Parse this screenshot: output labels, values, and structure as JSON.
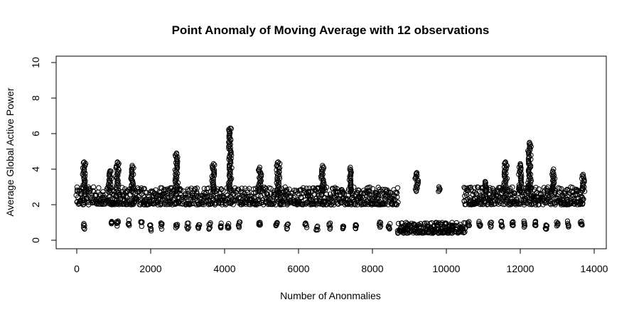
{
  "chart_data": {
    "type": "scatter",
    "title": "Point Anomaly of Moving Average with 12 observations",
    "xlabel": "Number of Anonmalies",
    "ylabel": "Average Global Active Power",
    "xlim": [
      0,
      14000
    ],
    "ylim": [
      0,
      10
    ],
    "x_ticks": [
      0,
      2000,
      4000,
      6000,
      8000,
      10000,
      12000,
      14000
    ],
    "y_ticks": [
      0,
      2,
      4,
      6,
      8,
      10
    ],
    "marker": "open-circle",
    "grid": false,
    "x_max_observed": 13700,
    "bands": [
      {
        "x": [
          0,
          8700
        ],
        "y_range": [
          2.0,
          3.0
        ],
        "note": "dense upper band"
      },
      {
        "x": [
          10500,
          13700
        ],
        "y_range": [
          2.0,
          3.0
        ],
        "note": "dense upper band"
      },
      {
        "x": [
          8700,
          10500
        ],
        "y_range": [
          0.4,
          1.0
        ],
        "note": "dense lower band"
      }
    ],
    "spikes": [
      {
        "x": 200,
        "y": 4.4
      },
      {
        "x": 900,
        "y": 3.9
      },
      {
        "x": 1100,
        "y": 4.4
      },
      {
        "x": 1500,
        "y": 4.2
      },
      {
        "x": 2700,
        "y": 4.9
      },
      {
        "x": 3700,
        "y": 4.3
      },
      {
        "x": 4150,
        "y": 6.3
      },
      {
        "x": 4950,
        "y": 4.1
      },
      {
        "x": 5450,
        "y": 4.4
      },
      {
        "x": 6650,
        "y": 4.2
      },
      {
        "x": 7400,
        "y": 4.1
      },
      {
        "x": 9200,
        "y": 3.8
      },
      {
        "x": 9800,
        "y": 3.0
      },
      {
        "x": 11050,
        "y": 3.3
      },
      {
        "x": 11600,
        "y": 4.4
      },
      {
        "x": 12000,
        "y": 4.3
      },
      {
        "x": 12250,
        "y": 5.5
      },
      {
        "x": 12900,
        "y": 4.0
      },
      {
        "x": 13700,
        "y": 3.7
      }
    ],
    "lower_clusters": [
      {
        "x": 200,
        "y": 0.8
      },
      {
        "x": 950,
        "y": 0.9
      },
      {
        "x": 1100,
        "y": 0.9
      },
      {
        "x": 1400,
        "y": 1.0
      },
      {
        "x": 1750,
        "y": 0.9
      },
      {
        "x": 2000,
        "y": 0.7
      },
      {
        "x": 2300,
        "y": 0.8
      },
      {
        "x": 2700,
        "y": 0.8
      },
      {
        "x": 3000,
        "y": 0.8
      },
      {
        "x": 3300,
        "y": 0.8
      },
      {
        "x": 3600,
        "y": 0.8
      },
      {
        "x": 3900,
        "y": 0.8
      },
      {
        "x": 4100,
        "y": 0.8
      },
      {
        "x": 4400,
        "y": 0.9
      },
      {
        "x": 4950,
        "y": 1.0
      },
      {
        "x": 5400,
        "y": 0.9
      },
      {
        "x": 5700,
        "y": 0.8
      },
      {
        "x": 6200,
        "y": 0.8
      },
      {
        "x": 6500,
        "y": 0.7
      },
      {
        "x": 6850,
        "y": 0.8
      },
      {
        "x": 7200,
        "y": 0.8
      },
      {
        "x": 7550,
        "y": 0.8
      },
      {
        "x": 8200,
        "y": 0.9
      },
      {
        "x": 8450,
        "y": 0.8
      },
      {
        "x": 10600,
        "y": 0.9
      },
      {
        "x": 10900,
        "y": 0.9
      },
      {
        "x": 11200,
        "y": 0.9
      },
      {
        "x": 11500,
        "y": 0.9
      },
      {
        "x": 11800,
        "y": 0.9
      },
      {
        "x": 12100,
        "y": 0.9
      },
      {
        "x": 12400,
        "y": 0.9
      },
      {
        "x": 12700,
        "y": 0.8
      },
      {
        "x": 13000,
        "y": 0.9
      },
      {
        "x": 13300,
        "y": 0.9
      },
      {
        "x": 13650,
        "y": 0.9
      }
    ]
  }
}
